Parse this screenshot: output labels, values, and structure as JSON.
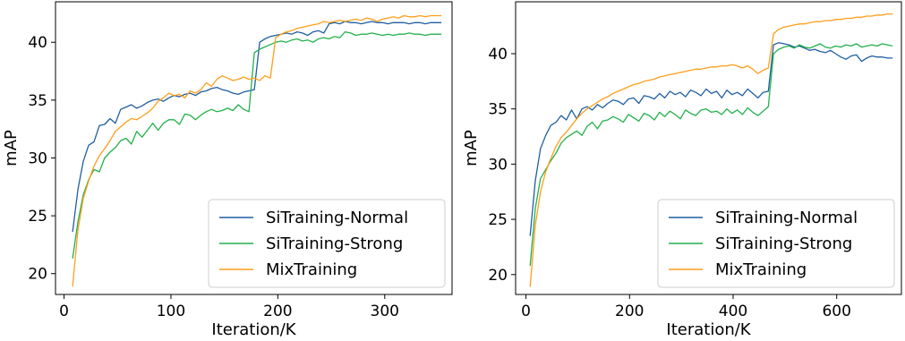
{
  "chart_data": [
    {
      "type": "line",
      "xlabel": "Iteration/K",
      "ylabel": "mAP",
      "xlim": [
        -8,
        363
      ],
      "ylim": [
        18.2,
        43.5
      ],
      "xticks": [
        0,
        100,
        200,
        300
      ],
      "yticks": [
        20,
        25,
        30,
        35,
        40
      ],
      "grid": false,
      "legend_position": "lower-right",
      "series": [
        {
          "name": "SiTraining-Normal",
          "color": "#1f5fa0",
          "x": [
            8,
            13,
            18,
            23,
            28,
            33,
            38,
            43,
            48,
            53,
            58,
            63,
            68,
            73,
            78,
            83,
            88,
            93,
            98,
            103,
            108,
            113,
            118,
            123,
            128,
            133,
            138,
            143,
            148,
            153,
            158,
            163,
            168,
            173,
            178,
            183,
            188,
            193,
            198,
            203,
            208,
            213,
            218,
            223,
            228,
            233,
            238,
            243,
            248,
            253,
            258,
            263,
            268,
            273,
            278,
            283,
            288,
            293,
            298,
            303,
            308,
            313,
            318,
            323,
            328,
            333,
            338,
            343,
            348,
            353
          ],
          "values": [
            23.6,
            27.3,
            29.7,
            31.1,
            31.4,
            32.8,
            32.9,
            33.4,
            33.0,
            34.2,
            34.4,
            34.6,
            34.3,
            34.5,
            34.8,
            35.0,
            35.1,
            34.9,
            35.2,
            35.4,
            35.3,
            35.5,
            35.6,
            35.4,
            35.7,
            35.8,
            36.0,
            36.1,
            35.9,
            35.8,
            35.6,
            35.5,
            35.7,
            35.8,
            35.9,
            40.0,
            40.3,
            40.5,
            40.6,
            40.7,
            40.8,
            40.7,
            40.9,
            40.8,
            40.6,
            40.9,
            41.0,
            40.8,
            41.6,
            41.7,
            41.6,
            41.8,
            41.7,
            41.7,
            41.6,
            41.7,
            41.8,
            41.7,
            41.7,
            41.6,
            41.7,
            41.7,
            41.7,
            41.6,
            41.7,
            41.7,
            41.6,
            41.7,
            41.7,
            41.7
          ]
        },
        {
          "name": "SiTraining-Strong",
          "color": "#22b14c",
          "x": [
            8,
            13,
            18,
            23,
            28,
            33,
            38,
            43,
            48,
            53,
            58,
            63,
            68,
            73,
            78,
            83,
            88,
            93,
            98,
            103,
            108,
            113,
            118,
            123,
            128,
            133,
            138,
            143,
            148,
            153,
            158,
            163,
            168,
            173,
            178,
            183,
            188,
            193,
            198,
            203,
            208,
            213,
            218,
            223,
            228,
            233,
            238,
            243,
            248,
            253,
            258,
            263,
            268,
            273,
            278,
            283,
            288,
            293,
            298,
            303,
            308,
            313,
            318,
            323,
            328,
            333,
            338,
            343,
            348,
            353
          ],
          "values": [
            21.3,
            24.5,
            26.8,
            28.1,
            29.0,
            28.8,
            30.0,
            30.5,
            30.9,
            31.5,
            31.7,
            31.2,
            32.3,
            31.8,
            32.4,
            33.0,
            32.4,
            33.0,
            33.3,
            33.3,
            32.9,
            33.8,
            33.7,
            33.3,
            33.7,
            34.0,
            34.2,
            34.0,
            34.1,
            34.3,
            34.1,
            34.6,
            34.2,
            34.0,
            39.1,
            39.4,
            39.6,
            39.8,
            40.0,
            40.1,
            40.0,
            40.2,
            40.3,
            40.1,
            40.2,
            40.0,
            40.3,
            40.4,
            40.3,
            40.5,
            40.4,
            40.9,
            40.8,
            40.6,
            40.7,
            40.7,
            40.8,
            40.7,
            40.6,
            40.7,
            40.6,
            40.7,
            40.7,
            40.8,
            40.7,
            40.7,
            40.6,
            40.7,
            40.7,
            40.7
          ]
        },
        {
          "name": "MixTraining",
          "color": "#ff9e1b",
          "x": [
            8,
            13,
            18,
            23,
            28,
            33,
            38,
            43,
            48,
            53,
            58,
            63,
            68,
            73,
            78,
            83,
            88,
            93,
            98,
            103,
            108,
            113,
            118,
            123,
            128,
            133,
            138,
            143,
            148,
            153,
            158,
            163,
            168,
            173,
            178,
            183,
            188,
            193,
            198,
            203,
            208,
            213,
            218,
            223,
            228,
            233,
            238,
            243,
            248,
            253,
            258,
            263,
            268,
            273,
            278,
            283,
            288,
            293,
            298,
            303,
            308,
            313,
            318,
            323,
            328,
            333,
            338,
            343,
            348,
            353
          ],
          "values": [
            18.9,
            23.8,
            26.5,
            28.0,
            29.3,
            30.2,
            30.8,
            31.5,
            32.3,
            32.7,
            33.1,
            33.4,
            33.3,
            33.6,
            33.9,
            34.3,
            34.9,
            35.2,
            35.6,
            35.4,
            35.5,
            35.2,
            35.8,
            35.6,
            35.9,
            36.5,
            36.2,
            36.8,
            37.1,
            36.9,
            36.7,
            36.8,
            37.0,
            36.8,
            36.9,
            36.7,
            37.1,
            36.9,
            40.4,
            40.7,
            40.9,
            41.0,
            41.2,
            41.3,
            41.4,
            41.5,
            41.6,
            41.8,
            41.7,
            41.8,
            41.9,
            41.8,
            41.9,
            42.0,
            41.9,
            42.1,
            42.0,
            41.8,
            42.0,
            42.1,
            42.2,
            42.1,
            42.3,
            42.2,
            42.2,
            42.3,
            42.2,
            42.3,
            42.3,
            42.3
          ]
        }
      ]
    },
    {
      "type": "line",
      "xlabel": "Iteration/K",
      "ylabel": "mAP",
      "xlim": [
        -20,
        725
      ],
      "ylim": [
        18.2,
        44.7
      ],
      "xticks": [
        0,
        200,
        400,
        600
      ],
      "yticks": [
        20,
        25,
        30,
        35,
        40
      ],
      "grid": false,
      "legend_position": "lower-right",
      "series": [
        {
          "name": "SiTraining-Normal",
          "color": "#1f5fa0",
          "x": [
            8,
            18,
            28,
            38,
            48,
            58,
            68,
            78,
            88,
            98,
            108,
            118,
            128,
            138,
            148,
            158,
            168,
            178,
            188,
            198,
            208,
            218,
            228,
            238,
            248,
            258,
            268,
            278,
            288,
            298,
            308,
            318,
            328,
            338,
            348,
            358,
            368,
            378,
            388,
            398,
            408,
            418,
            428,
            438,
            448,
            458,
            468,
            478,
            488,
            498,
            508,
            518,
            528,
            538,
            548,
            558,
            568,
            578,
            588,
            598,
            608,
            618,
            628,
            638,
            648,
            658,
            668,
            678,
            688,
            698,
            708
          ],
          "values": [
            23.5,
            28.5,
            31.4,
            32.6,
            33.5,
            33.8,
            34.4,
            34.0,
            34.9,
            34.1,
            35.0,
            35.2,
            34.9,
            35.4,
            35.1,
            35.5,
            35.8,
            35.7,
            35.4,
            35.9,
            36.0,
            35.5,
            36.2,
            36.1,
            35.9,
            36.4,
            36.0,
            36.6,
            36.3,
            36.5,
            36.1,
            36.7,
            36.5,
            36.2,
            36.8,
            36.4,
            36.6,
            36.0,
            36.7,
            36.3,
            36.5,
            36.2,
            36.8,
            36.4,
            36.0,
            36.5,
            36.6,
            40.8,
            41.0,
            40.9,
            40.8,
            40.6,
            40.7,
            40.5,
            40.3,
            40.4,
            40.2,
            40.1,
            40.3,
            40.0,
            39.7,
            39.5,
            39.8,
            39.9,
            39.3,
            39.6,
            39.8,
            39.7,
            39.7,
            39.6,
            39.6
          ]
        },
        {
          "name": "SiTraining-Strong",
          "color": "#22b14c",
          "x": [
            8,
            18,
            28,
            38,
            48,
            58,
            68,
            78,
            88,
            98,
            108,
            118,
            128,
            138,
            148,
            158,
            168,
            178,
            188,
            198,
            208,
            218,
            228,
            238,
            248,
            258,
            268,
            278,
            288,
            298,
            308,
            318,
            328,
            338,
            348,
            358,
            368,
            378,
            388,
            398,
            408,
            418,
            428,
            438,
            448,
            458,
            468,
            478,
            488,
            498,
            508,
            518,
            528,
            538,
            548,
            558,
            568,
            578,
            588,
            598,
            608,
            618,
            628,
            638,
            648,
            658,
            668,
            678,
            688,
            698,
            708
          ],
          "values": [
            20.8,
            26.0,
            28.7,
            29.5,
            30.3,
            31.0,
            31.9,
            32.4,
            32.7,
            33.0,
            32.6,
            33.4,
            33.8,
            33.2,
            33.9,
            34.0,
            34.3,
            34.1,
            33.8,
            34.5,
            34.2,
            33.9,
            34.6,
            34.4,
            34.0,
            34.7,
            34.3,
            34.8,
            34.5,
            34.1,
            34.9,
            34.6,
            34.4,
            34.9,
            35.0,
            34.7,
            34.8,
            34.5,
            35.0,
            34.6,
            34.9,
            34.5,
            35.1,
            34.7,
            34.4,
            34.8,
            35.2,
            40.0,
            40.4,
            40.6,
            40.7,
            40.5,
            40.8,
            40.6,
            40.5,
            40.7,
            40.9,
            40.6,
            40.5,
            40.7,
            40.6,
            40.8,
            40.7,
            40.9,
            40.6,
            40.7,
            40.8,
            40.7,
            40.9,
            40.8,
            40.7
          ]
        },
        {
          "name": "MixTraining",
          "color": "#ff9e1b",
          "x": [
            8,
            18,
            28,
            38,
            48,
            58,
            68,
            78,
            88,
            98,
            108,
            118,
            128,
            138,
            148,
            158,
            168,
            178,
            188,
            198,
            208,
            218,
            228,
            238,
            248,
            258,
            268,
            278,
            288,
            298,
            308,
            318,
            328,
            338,
            348,
            358,
            368,
            378,
            388,
            398,
            408,
            418,
            428,
            438,
            448,
            458,
            468,
            478,
            488,
            498,
            508,
            518,
            528,
            538,
            548,
            558,
            568,
            578,
            588,
            598,
            608,
            618,
            628,
            638,
            648,
            658,
            668,
            678,
            688,
            698,
            708
          ],
          "values": [
            18.9,
            24.5,
            27.5,
            29.3,
            30.5,
            31.6,
            32.4,
            32.9,
            33.5,
            34.1,
            34.6,
            35.0,
            35.3,
            35.6,
            35.9,
            36.1,
            36.4,
            36.6,
            36.8,
            37.0,
            37.2,
            37.3,
            37.5,
            37.6,
            37.7,
            37.9,
            38.0,
            38.1,
            38.2,
            38.3,
            38.4,
            38.5,
            38.6,
            38.6,
            38.7,
            38.8,
            38.8,
            38.9,
            38.9,
            39.0,
            38.9,
            38.7,
            38.9,
            38.6,
            38.2,
            38.5,
            38.7,
            41.8,
            42.2,
            42.4,
            42.5,
            42.6,
            42.7,
            42.7,
            42.8,
            42.9,
            42.9,
            43.0,
            43.0,
            43.1,
            43.1,
            43.2,
            43.2,
            43.3,
            43.3,
            43.4,
            43.4,
            43.5,
            43.5,
            43.6,
            43.6
          ]
        }
      ]
    }
  ]
}
